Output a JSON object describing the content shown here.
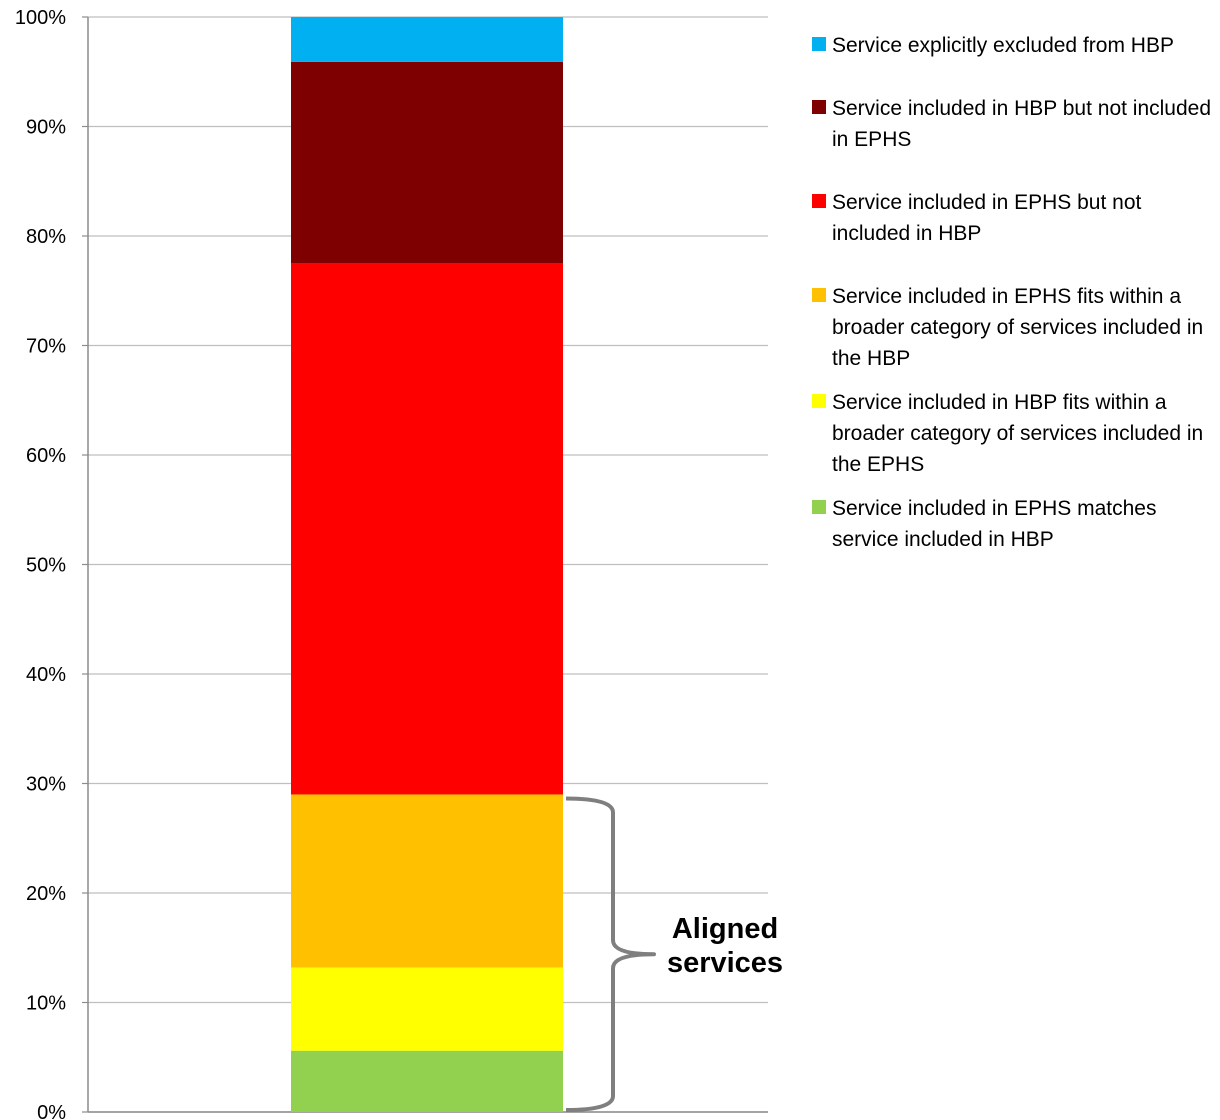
{
  "chart_data": {
    "type": "bar",
    "stacked": true,
    "percent_stacked": true,
    "categories": [
      ""
    ],
    "title": "",
    "xlabel": "",
    "ylabel": "",
    "ylim": [
      0,
      100
    ],
    "y_ticks": [
      "0%",
      "10%",
      "20%",
      "30%",
      "40%",
      "50%",
      "60%",
      "70%",
      "80%",
      "90%",
      "100%"
    ],
    "grid": true,
    "legend_position": "right",
    "series": [
      {
        "name": "Service included in EPHS matches service included in HBP",
        "values": [
          5.6
        ],
        "color": "#92d050"
      },
      {
        "name": "Service included in HBP fits within a broader category of services included in the EPHS",
        "values": [
          7.6
        ],
        "color": "#ffff00"
      },
      {
        "name": "Service included in EPHS fits within a broader category of services included in the HBP",
        "values": [
          15.8
        ],
        "color": "#ffc000"
      },
      {
        "name": "Service included in EPHS but not included in HBP",
        "values": [
          48.5
        ],
        "color": "#ff0000"
      },
      {
        "name": "Service included in HBP but not included in EPHS",
        "values": [
          18.4
        ],
        "color": "#7f0000"
      },
      {
        "name": "Service explicitly excluded from HBP",
        "values": [
          4.1
        ],
        "color": "#00b0f0"
      }
    ],
    "annotations": [
      {
        "text": "Aligned services",
        "bracket_from": 0,
        "bracket_to": 29.0
      }
    ]
  }
}
